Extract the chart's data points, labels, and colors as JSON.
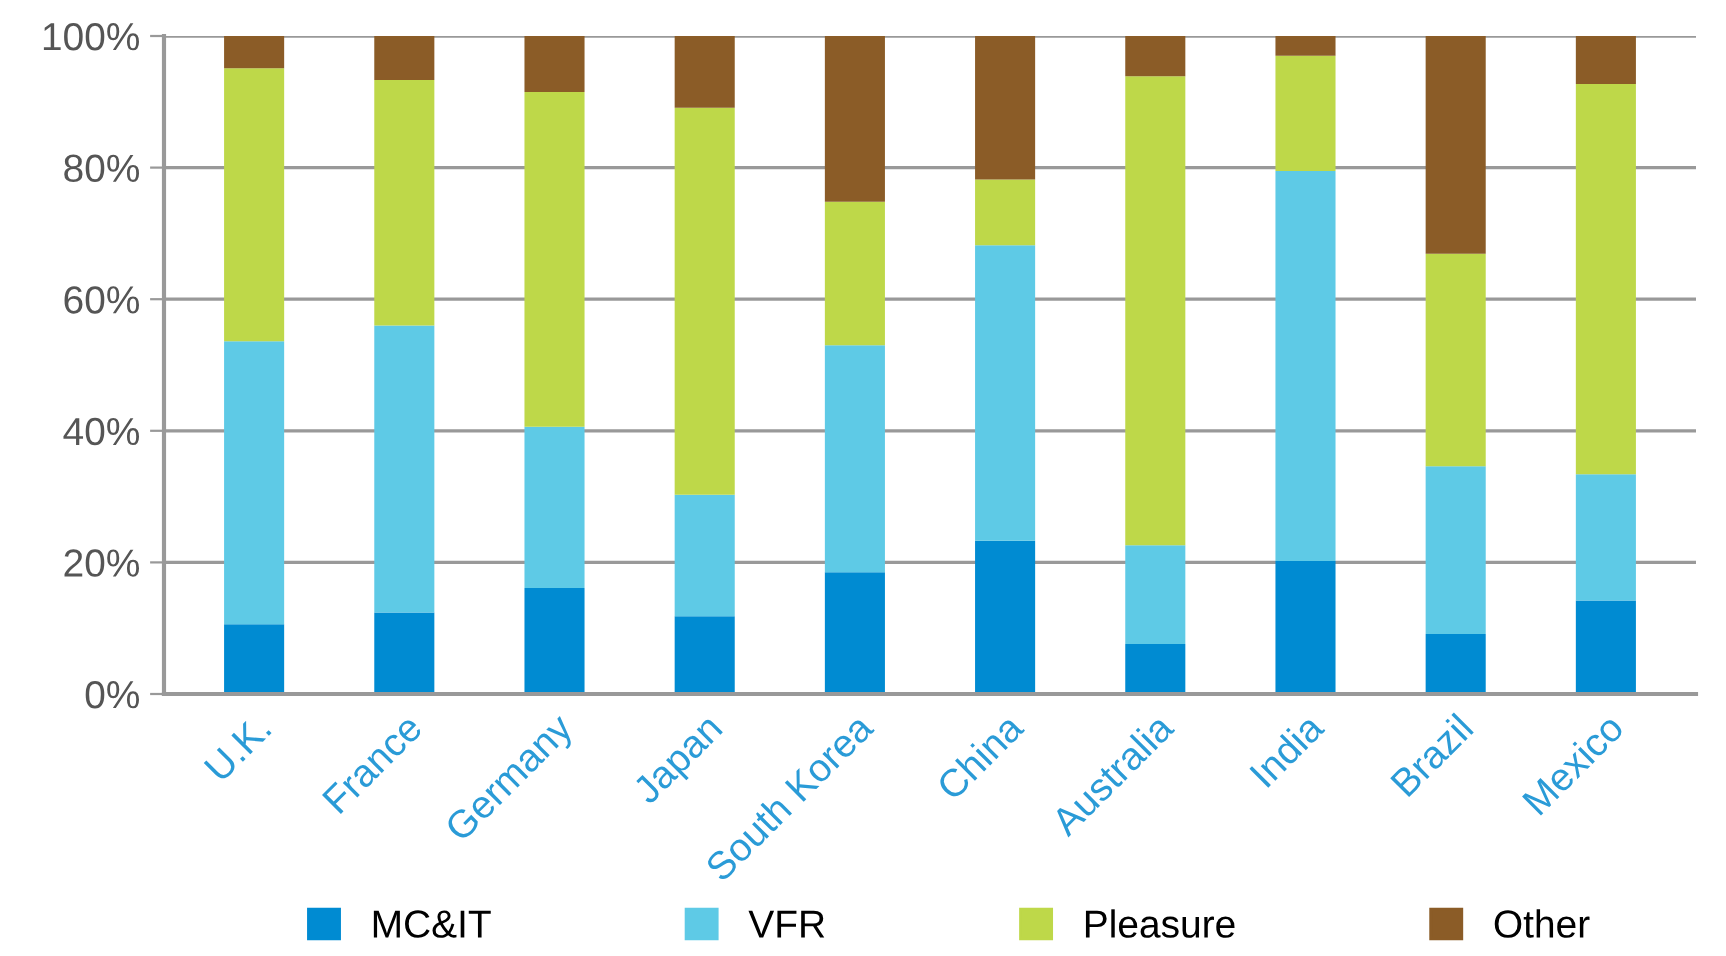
{
  "chart_data": {
    "type": "bar",
    "stacked": true,
    "categories": [
      "U.K.",
      "France",
      "Germany",
      "Japan",
      "South Korea",
      "China",
      "Australia",
      "India",
      "Brazil",
      "Mexico"
    ],
    "series": [
      {
        "name": "MC&IT",
        "color": "#008bd2",
        "values": [
          10.6,
          12.4,
          16.1,
          11.8,
          18.5,
          23.3,
          7.6,
          20.2,
          9.1,
          14.2
        ]
      },
      {
        "name": "VFR",
        "color": "#5ecae6",
        "values": [
          43.0,
          43.6,
          24.5,
          18.5,
          34.5,
          44.9,
          15.0,
          59.3,
          25.5,
          19.2
        ]
      },
      {
        "name": "Pleasure",
        "color": "#bed849",
        "values": [
          41.5,
          37.3,
          50.9,
          58.8,
          21.8,
          10.0,
          71.3,
          17.5,
          32.3,
          59.3
        ]
      },
      {
        "name": "Other",
        "color": "#8b5c27",
        "values": [
          4.9,
          6.7,
          8.5,
          10.9,
          25.2,
          21.8,
          6.1,
          3.0,
          33.1,
          7.3
        ]
      }
    ],
    "ylim": [
      0,
      100
    ],
    "yticks": [
      {
        "value": 0,
        "label": "0%"
      },
      {
        "value": 20,
        "label": "20%"
      },
      {
        "value": 40,
        "label": "40%"
      },
      {
        "value": 60,
        "label": "60%"
      },
      {
        "value": 80,
        "label": "80%"
      },
      {
        "value": 100,
        "label": "100%"
      }
    ],
    "grid": "y",
    "legend": "bottom"
  }
}
